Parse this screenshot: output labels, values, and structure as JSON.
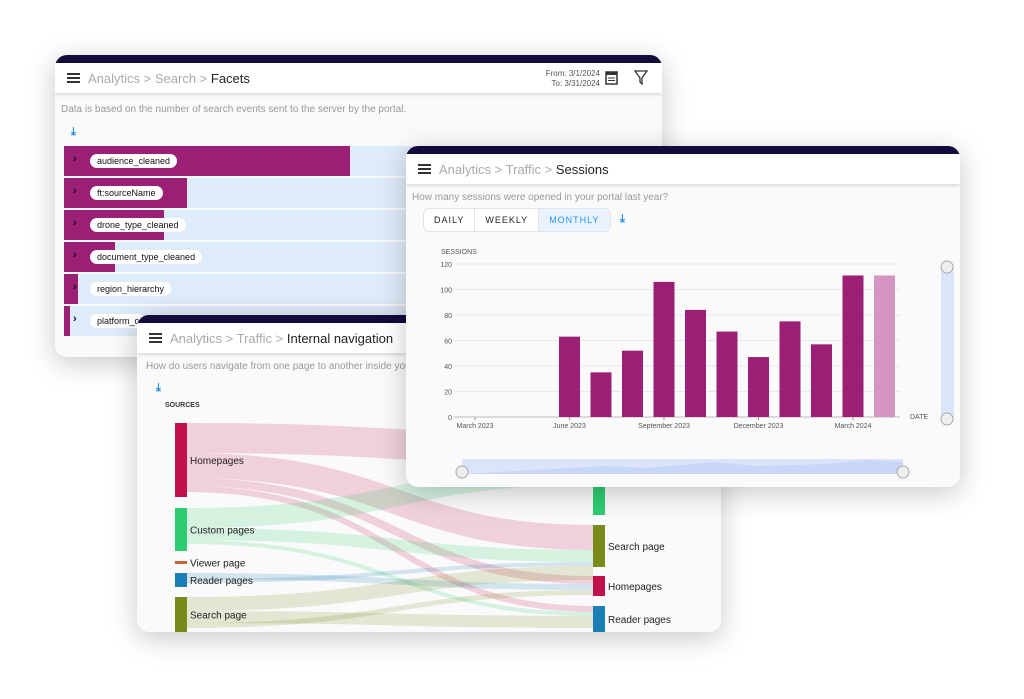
{
  "facets": {
    "breadcrumb": [
      "Analytics",
      "Search",
      "Facets"
    ],
    "sep": " > ",
    "date_from": "From: 3/1/2024",
    "date_to": "To: 3/31/2024",
    "description": "Data is based on the number of search events sent to the server by the portal.",
    "bar_color": "#9c1f76",
    "rows": [
      {
        "label": "audience_cleaned",
        "share": 1.0
      },
      {
        "label": "ft:sourceName",
        "share": 0.43
      },
      {
        "label": "drone_type_cleaned",
        "share": 0.35
      },
      {
        "label": "document_type_cleaned",
        "share": 0.18
      },
      {
        "label": "region_hierarchy",
        "share": 0.05
      },
      {
        "label": "platform_c",
        "share": 0.02
      }
    ]
  },
  "navigation": {
    "breadcrumb": [
      "Analytics",
      "Traffic",
      "Internal navigation"
    ],
    "description": "How do users navigate from one page to another inside you",
    "sources_label": "SOURCES",
    "sources": [
      {
        "label": "Homepages",
        "color": "#c2104a"
      },
      {
        "label": "Custom pages",
        "color": "#2ecc71"
      },
      {
        "label": "Viewer page",
        "color": "#c0653a"
      },
      {
        "label": "Reader pages",
        "color": "#1a7fb5"
      },
      {
        "label": "Search page",
        "color": "#7a8a1a"
      }
    ],
    "targets": [
      {
        "label": "",
        "color": "#2ecc71"
      },
      {
        "label": "Search page",
        "color": "#7a8a1a"
      },
      {
        "label": "Homepages",
        "color": "#c2104a"
      },
      {
        "label": "Reader pages",
        "color": "#1a7fb5"
      }
    ]
  },
  "sessions": {
    "breadcrumb": [
      "Analytics",
      "Traffic",
      "Sessions"
    ],
    "description": "How many sessions were opened in your portal last year?",
    "tabs": [
      "DAILY",
      "WEEKLY",
      "MONTHLY"
    ],
    "active_tab": "MONTHLY"
  },
  "chart_data": {
    "type": "bar",
    "ylabel": "SESSIONS",
    "xlabel": "DATE",
    "ylim": [
      0,
      120
    ],
    "yticks": [
      0,
      20,
      40,
      60,
      80,
      100,
      120
    ],
    "xticks": [
      "March 2023",
      "June 2023",
      "September 2023",
      "December 2023",
      "March 2024"
    ],
    "categories": [
      "2023-03",
      "2023-04",
      "2023-05",
      "2023-06",
      "2023-07",
      "2023-08",
      "2023-09",
      "2023-10",
      "2023-11",
      "2023-12",
      "2024-01",
      "2024-02",
      "2024-03",
      "2024-04"
    ],
    "values": [
      0,
      0,
      0,
      63,
      35,
      52,
      106,
      84,
      67,
      47,
      75,
      57,
      111,
      111
    ],
    "bar_color": "#9c1f76",
    "partial_bar_color": "#d495c2",
    "grid": true
  }
}
